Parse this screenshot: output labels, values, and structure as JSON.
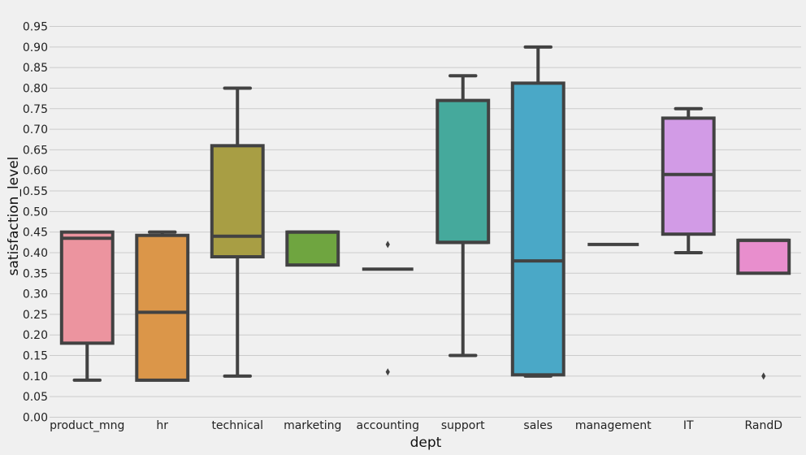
{
  "chart_data": {
    "type": "box",
    "xlabel": "dept",
    "ylabel": "satisfaction_level",
    "ylim": [
      0,
      0.97
    ],
    "y_ticks": [
      0.0,
      0.05,
      0.1,
      0.15,
      0.2,
      0.25,
      0.3,
      0.35,
      0.4,
      0.45,
      0.5,
      0.55,
      0.6,
      0.65,
      0.7,
      0.75,
      0.8,
      0.85,
      0.9,
      0.95
    ],
    "y_tick_labels": [
      "0.00",
      "0.05",
      "0.10",
      "0.15",
      "0.20",
      "0.25",
      "0.30",
      "0.35",
      "0.40",
      "0.45",
      "0.50",
      "0.55",
      "0.60",
      "0.65",
      "0.70",
      "0.75",
      "0.80",
      "0.85",
      "0.90",
      "0.95"
    ],
    "grid": "horizontal",
    "categories": [
      "product_mng",
      "hr",
      "technical",
      "marketing",
      "accounting",
      "support",
      "sales",
      "management",
      "IT",
      "RandD"
    ],
    "boxes": [
      {
        "category": "product_mng",
        "whisker_low": 0.09,
        "q1": 0.18,
        "median": 0.435,
        "q3": 0.45,
        "whisker_high": 0.45,
        "outliers": [],
        "color": "#ec949f"
      },
      {
        "category": "hr",
        "whisker_low": 0.09,
        "q1": 0.09,
        "median": 0.255,
        "q3": 0.442,
        "whisker_high": 0.45,
        "outliers": [],
        "color": "#db9649"
      },
      {
        "category": "technical",
        "whisker_low": 0.1,
        "q1": 0.39,
        "median": 0.44,
        "q3": 0.66,
        "whisker_high": 0.8,
        "outliers": [],
        "color": "#a89e44"
      },
      {
        "category": "marketing",
        "whisker_low": 0.37,
        "q1": 0.37,
        "median": 0.45,
        "q3": 0.45,
        "whisker_high": 0.45,
        "outliers": [],
        "color": "#6fa540"
      },
      {
        "category": "accounting",
        "whisker_low": 0.36,
        "q1": 0.36,
        "median": 0.36,
        "q3": 0.36,
        "whisker_high": 0.36,
        "outliers": [
          0.42,
          0.11
        ],
        "color": "#4aab84"
      },
      {
        "category": "support",
        "whisker_low": 0.15,
        "q1": 0.425,
        "median": 0.425,
        "q3": 0.77,
        "whisker_high": 0.83,
        "outliers": [],
        "color": "#45a99c"
      },
      {
        "category": "sales",
        "whisker_low": 0.1,
        "q1": 0.103,
        "median": 0.38,
        "q3": 0.812,
        "whisker_high": 0.9,
        "outliers": [],
        "color": "#4aa8c7"
      },
      {
        "category": "management",
        "whisker_low": 0.42,
        "q1": 0.42,
        "median": 0.42,
        "q3": 0.42,
        "whisker_high": 0.42,
        "outliers": [],
        "color": "#79a7e0"
      },
      {
        "category": "IT",
        "whisker_low": 0.4,
        "q1": 0.445,
        "median": 0.59,
        "q3": 0.727,
        "whisker_high": 0.75,
        "outliers": [],
        "color": "#d29be6"
      },
      {
        "category": "RandD",
        "whisker_low": 0.35,
        "q1": 0.35,
        "median": 0.43,
        "q3": 0.43,
        "whisker_high": 0.43,
        "outliers": [
          0.1
        ],
        "color": "#e88ecd"
      }
    ],
    "colors": {
      "background": "#f0f0f0",
      "grid": "#cbcbcb",
      "line": "#424242"
    }
  }
}
